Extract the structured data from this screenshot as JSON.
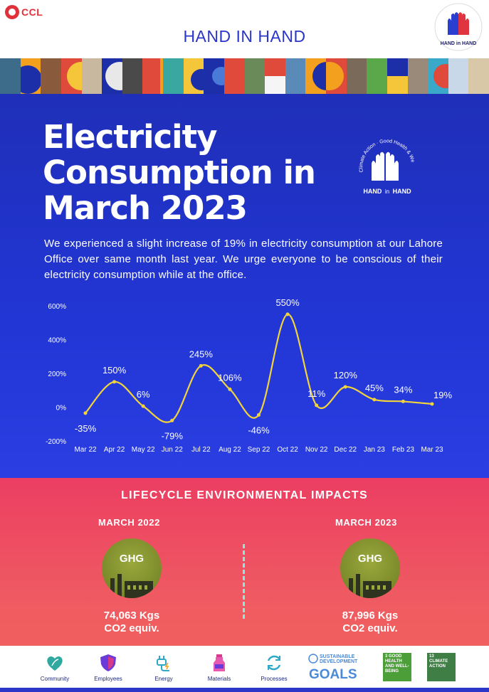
{
  "header": {
    "logo_text": "CCL",
    "title": "HAND IN HAND",
    "badge_arc_text": "Climate Action · Good Health & Well-Being",
    "badge_word_hand": "HAND",
    "badge_word_in": "in",
    "badge_word_hand2": "HAND"
  },
  "hero": {
    "headline_line1": "Electricity",
    "headline_line2": "Consumption in",
    "headline_line3": "March 2023",
    "intro": "We experienced a slight increase of 19% in electricity consumption at our Lahore Office over same month last year. We urge everyone to be conscious of their electricity consumption while at the office."
  },
  "colors": {
    "blue_bg": "#2236d6",
    "pink_bg": "#ee4a62",
    "line": "#f2d43a",
    "brand_red": "#e0303a"
  },
  "chart_data": {
    "type": "line",
    "categories": [
      "Mar 22",
      "Apr 22",
      "May 22",
      "Jun 22",
      "Jul 22",
      "Aug 22",
      "Sep 22",
      "Oct 22",
      "Nov 22",
      "Dec 22",
      "Jan 23",
      "Feb 23",
      "Mar 23"
    ],
    "values": [
      -35,
      150,
      6,
      -79,
      245,
      106,
      -46,
      550,
      11,
      120,
      45,
      34,
      19
    ],
    "data_labels": [
      "-35%",
      "150%",
      "6%",
      "-79%",
      "245%",
      "106%",
      "-46%",
      "550%",
      "11%",
      "120%",
      "45%",
      "34%",
      "19%"
    ],
    "y_ticks": [
      -200,
      0,
      200,
      400,
      600
    ],
    "y_tick_labels": [
      "-200%",
      "0%",
      "200%",
      "400%",
      "600%"
    ],
    "ylim": [
      -200,
      600
    ],
    "grid": false,
    "smooth": true
  },
  "lifecycle": {
    "title": "LIFECYCLE ENVIRONMENTAL IMPACTS",
    "left": {
      "period": "MARCH 2022",
      "icon_label": "GHG",
      "amount": "74,063 Kgs",
      "unit": "CO2 equiv."
    },
    "right": {
      "period": "MARCH 2023",
      "icon_label": "GHG",
      "amount": "87,996 Kgs",
      "unit": "CO2 equiv."
    }
  },
  "footer": {
    "items": [
      {
        "label": "Community",
        "icon": "leaf-heart-icon"
      },
      {
        "label": "Employees",
        "icon": "shield-icon"
      },
      {
        "label": "Energy",
        "icon": "plug-icon"
      },
      {
        "label": "Materials",
        "icon": "bottle-icon"
      },
      {
        "label": "Processes",
        "icon": "cycle-icon"
      }
    ],
    "sdg_line1": "SUSTAINABLE",
    "sdg_line2": "DEVELOPMENT",
    "sdg_line3": "GOALS",
    "sdg3_text": "3 GOOD HEALTH AND WELL-BEING",
    "sdg13_text": "13 CLIMATE ACTION"
  }
}
